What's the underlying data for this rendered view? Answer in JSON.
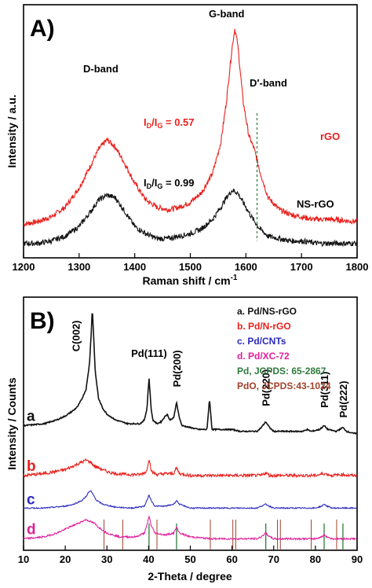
{
  "chart_data": [
    {
      "type": "line",
      "panel_label": "A)",
      "xlabel": "Raman shift / cm",
      "xlabel_sup": "-1",
      "ylabel": "Intensity / a.u.",
      "xlim": [
        1200,
        1800
      ],
      "x_ticks": [
        1200,
        1300,
        1400,
        1500,
        1600,
        1700,
        1800
      ],
      "grid": false,
      "series": [
        {
          "name": "rGO",
          "color": "#e8201c",
          "x": [
            1200,
            1225,
            1250,
            1275,
            1300,
            1320,
            1335,
            1350,
            1365,
            1380,
            1400,
            1420,
            1440,
            1460,
            1480,
            1500,
            1520,
            1540,
            1555,
            1565,
            1575,
            1580,
            1585,
            1595,
            1605,
            1615,
            1625,
            1640,
            1660,
            1680,
            1700,
            1720,
            1750,
            1800
          ],
          "y": [
            0.09,
            0.1,
            0.12,
            0.16,
            0.24,
            0.33,
            0.4,
            0.44,
            0.41,
            0.35,
            0.26,
            0.19,
            0.16,
            0.15,
            0.16,
            0.18,
            0.22,
            0.3,
            0.43,
            0.6,
            0.82,
            0.9,
            0.84,
            0.6,
            0.46,
            0.4,
            0.31,
            0.2,
            0.15,
            0.13,
            0.12,
            0.11,
            0.11,
            0.1
          ]
        },
        {
          "name": "NS-rGO",
          "color": "#111111",
          "x": [
            1200,
            1225,
            1250,
            1275,
            1300,
            1320,
            1335,
            1350,
            1365,
            1380,
            1400,
            1420,
            1440,
            1460,
            1480,
            1500,
            1520,
            1540,
            1555,
            1565,
            1575,
            1585,
            1595,
            1610,
            1625,
            1640,
            1660,
            1680,
            1700,
            1730,
            1760,
            1800
          ],
          "y": [
            0.01,
            0.01,
            0.02,
            0.04,
            0.08,
            0.14,
            0.19,
            0.21,
            0.2,
            0.15,
            0.08,
            0.05,
            0.03,
            0.03,
            0.04,
            0.05,
            0.07,
            0.11,
            0.16,
            0.2,
            0.23,
            0.22,
            0.18,
            0.12,
            0.07,
            0.04,
            0.03,
            0.02,
            0.02,
            0.01,
            0.01,
            0.01
          ]
        }
      ],
      "annotations": {
        "d_band": "D-band",
        "g_band": "G-band",
        "d_prime_band": "D′-band",
        "ratio_rgo_main": "I",
        "ratio_rgo_sub1": "D",
        "ratio_rgo_mid": "/I",
        "ratio_rgo_sub2": "G",
        "ratio_rgo_value": " = 0.57",
        "ratio_ns_main": "I",
        "ratio_ns_sub1": "D",
        "ratio_ns_mid": "/I",
        "ratio_ns_sub2": "G",
        "ratio_ns_value": " = 0.99",
        "label_rgo": "rGO",
        "label_ns": "NS-rGO",
        "dashed_x": 1620
      }
    },
    {
      "type": "line",
      "panel_label": "B)",
      "xlabel": "2-Theta / degree",
      "ylabel": "Intensity / Counts",
      "xlim": [
        10,
        90
      ],
      "x_ticks": [
        10,
        20,
        30,
        40,
        50,
        60,
        70,
        80,
        90
      ],
      "grid": false,
      "legend_placement": "top-right",
      "legend": [
        {
          "text": "a. Pd/NS-rGO",
          "color": "#111111"
        },
        {
          "text": "b. Pd/N-rGO",
          "color": "#e8201c"
        },
        {
          "text": "c. Pd/CNTs",
          "color": "#2a2abf"
        },
        {
          "text": "d. Pd/XC-72",
          "color": "#e0209a"
        },
        {
          "text": "Pd, JCPDS: 65-2867",
          "color": "#2e7a3c"
        },
        {
          "text": "PdO, JCPDS:43-1024",
          "color": "#a0402a"
        }
      ],
      "peak_labels": [
        {
          "text": "C(002)",
          "x": 26.5
        },
        {
          "text": "Pd(111)",
          "x": 40.1
        },
        {
          "text": "Pd(200)",
          "x": 46.7
        },
        {
          "text": "Pd(220)",
          "x": 68.1
        },
        {
          "text": "Pd(311)",
          "x": 82.1
        },
        {
          "text": "Pd(222)",
          "x": 86.6
        }
      ],
      "curve_labels": [
        "a",
        "b",
        "c",
        "d"
      ],
      "pd_reference_lines": [
        40.1,
        46.7,
        68.1,
        82.1,
        86.6
      ],
      "pdo_reference_lines": [
        29.3,
        33.8,
        42.0,
        54.8,
        60.2,
        60.9,
        70.9,
        71.6,
        79.0,
        85.1
      ],
      "series": [
        {
          "name": "a. Pd/NS-rGO",
          "color": "#111111",
          "offset": 0.6,
          "x": [
            10,
            15,
            18,
            20,
            22,
            23,
            24,
            25,
            25.8,
            26.2,
            26.5,
            26.8,
            27.2,
            28,
            29,
            30,
            32,
            35,
            38,
            39,
            39.6,
            40.1,
            40.6,
            41,
            42,
            43,
            44,
            44.5,
            45,
            46,
            46.7,
            47.4,
            48,
            50,
            52,
            54,
            54.6,
            55.2,
            56,
            58,
            60,
            62,
            64,
            66,
            67,
            68.1,
            69,
            70,
            74,
            77,
            78,
            79,
            81,
            82.1,
            83,
            85,
            86.6,
            87.5,
            89,
            90
          ],
          "y": [
            0.05,
            0.06,
            0.08,
            0.1,
            0.13,
            0.15,
            0.19,
            0.24,
            0.37,
            0.52,
            0.66,
            0.52,
            0.33,
            0.19,
            0.14,
            0.11,
            0.08,
            0.06,
            0.06,
            0.08,
            0.14,
            0.3,
            0.14,
            0.08,
            0.06,
            0.07,
            0.1,
            0.11,
            0.08,
            0.09,
            0.17,
            0.09,
            0.05,
            0.04,
            0.03,
            0.03,
            0.19,
            0.03,
            0.03,
            0.03,
            0.03,
            0.02,
            0.02,
            0.02,
            0.04,
            0.07,
            0.04,
            0.02,
            0.02,
            0.02,
            0.03,
            0.02,
            0.03,
            0.05,
            0.03,
            0.02,
            0.04,
            0.02,
            0.01,
            0.01
          ]
        },
        {
          "name": "b. Pd/N-rGO",
          "color": "#e8201c",
          "offset": 0.38,
          "x": [
            10,
            15,
            20,
            22,
            24,
            25,
            26,
            27,
            28,
            30,
            32,
            35,
            38,
            39.5,
            40.1,
            40.7,
            42,
            44,
            46,
            46.7,
            47.4,
            50,
            55,
            60,
            65,
            67,
            68.1,
            69,
            75,
            80,
            82.1,
            84,
            86.6,
            88,
            90
          ],
          "y": [
            0.01,
            0.02,
            0.04,
            0.06,
            0.08,
            0.09,
            0.08,
            0.06,
            0.05,
            0.03,
            0.02,
            0.015,
            0.015,
            0.03,
            0.1,
            0.03,
            0.015,
            0.02,
            0.02,
            0.05,
            0.02,
            0.01,
            0.01,
            0.01,
            0.01,
            0.01,
            0.025,
            0.01,
            0.01,
            0.01,
            0.02,
            0.01,
            0.015,
            0.01,
            0.01
          ]
        },
        {
          "name": "c. Pd/CNTs",
          "color": "#2a2abf",
          "offset": 0.21,
          "x": [
            10,
            15,
            20,
            22,
            24,
            25,
            25.5,
            26.1,
            26.7,
            27.5,
            29,
            32,
            36,
            39,
            39.6,
            40.1,
            40.6,
            41.5,
            44,
            46,
            46.7,
            47.4,
            50,
            55,
            60,
            66,
            67,
            68.1,
            69,
            70,
            75,
            80,
            81.5,
            82.1,
            82.8,
            84,
            86.6,
            88,
            90
          ],
          "y": [
            0.01,
            0.01,
            0.02,
            0.03,
            0.05,
            0.07,
            0.09,
            0.1,
            0.08,
            0.05,
            0.03,
            0.015,
            0.01,
            0.02,
            0.05,
            0.08,
            0.05,
            0.02,
            0.02,
            0.03,
            0.05,
            0.03,
            0.01,
            0.01,
            0.01,
            0.01,
            0.02,
            0.03,
            0.02,
            0.01,
            0.01,
            0.01,
            0.02,
            0.03,
            0.02,
            0.01,
            0.01,
            0.01,
            0.01
          ]
        },
        {
          "name": "d. Pd/XC-72",
          "color": "#e0209a",
          "offset": 0.05,
          "x": [
            10,
            15,
            18,
            20,
            22,
            24,
            25,
            26,
            27,
            28,
            30,
            33,
            37,
            39,
            39.6,
            40.1,
            40.6,
            41.5,
            44,
            46,
            46.7,
            47.4,
            50,
            55,
            60,
            66,
            67,
            68.1,
            69,
            70,
            75,
            80,
            81.5,
            82.1,
            82.8,
            84,
            86.6,
            88,
            90
          ],
          "y": [
            0.01,
            0.02,
            0.04,
            0.06,
            0.08,
            0.1,
            0.11,
            0.1,
            0.09,
            0.07,
            0.04,
            0.02,
            0.02,
            0.04,
            0.08,
            0.13,
            0.08,
            0.04,
            0.03,
            0.04,
            0.07,
            0.04,
            0.02,
            0.01,
            0.01,
            0.01,
            0.02,
            0.04,
            0.02,
            0.01,
            0.01,
            0.01,
            0.02,
            0.03,
            0.02,
            0.01,
            0.01,
            0.01,
            0.01
          ]
        }
      ]
    }
  ]
}
